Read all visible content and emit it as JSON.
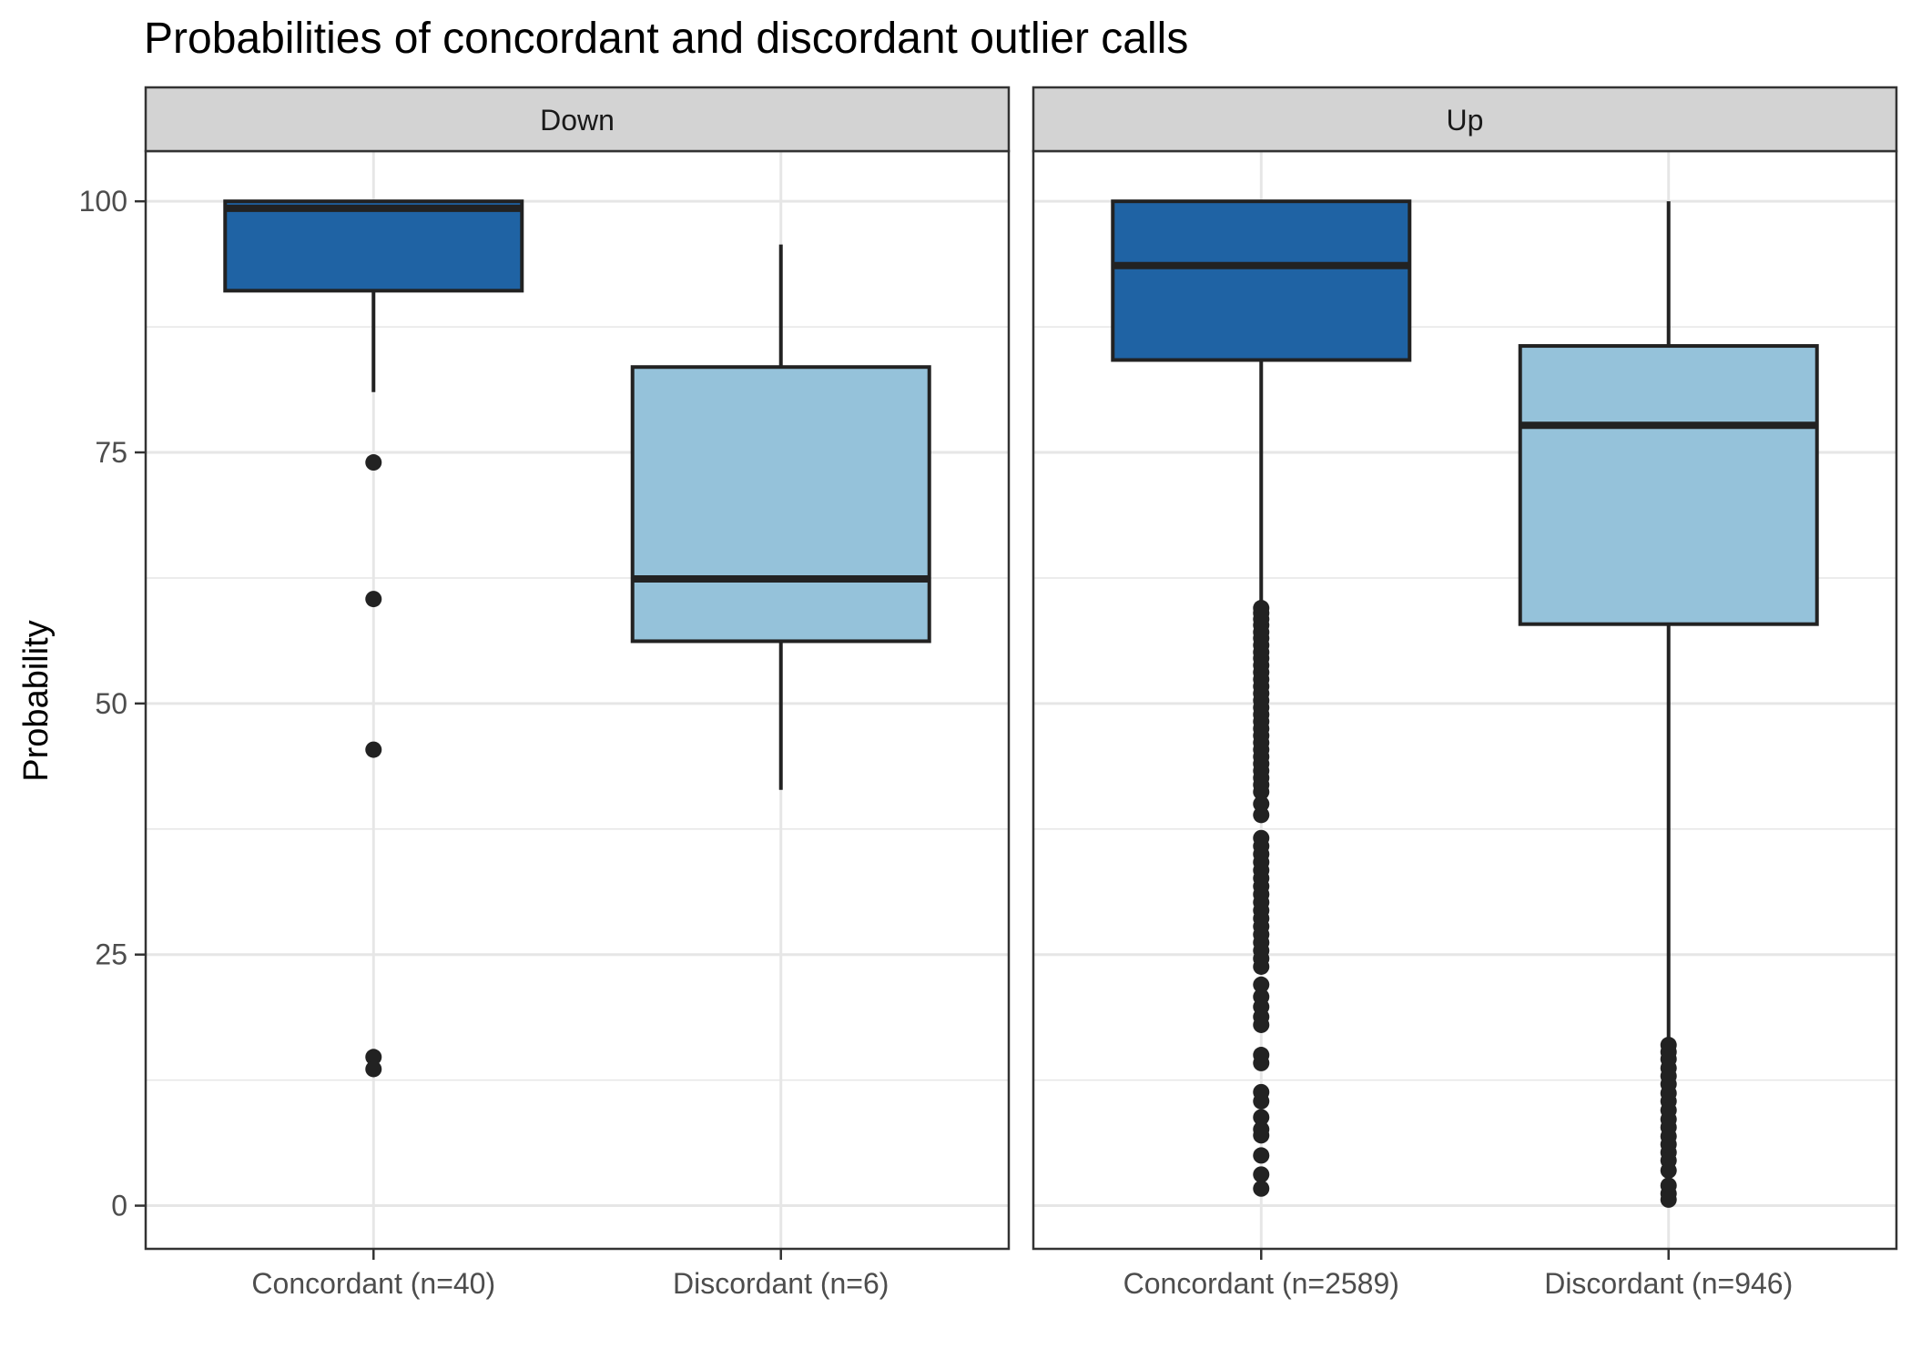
{
  "chart_data": {
    "type": "boxplot",
    "title": "Probabilities of concordant and discordant outlier calls",
    "ylabel": "Probability",
    "xlabel": "",
    "ylim": [
      -4.3,
      105
    ],
    "yticks": [
      0,
      25,
      50,
      75,
      100
    ],
    "grid": true,
    "legend": "none",
    "colors": {
      "concordant": "#1f63a4",
      "discordant": "#95c2da",
      "outline": "#222222",
      "strip_fill": "#d3d3d3",
      "grid": "#e6e6e6"
    },
    "panels": [
      {
        "strip_label": "Down",
        "categories": [
          "Concordant (n=40)",
          "Discordant (n=6)"
        ],
        "boxes": [
          {
            "group": "concordant",
            "whisker_low": 81.0,
            "q1": 91.1,
            "median": 99.3,
            "q3": 100.0,
            "whisker_high": 100.0,
            "outliers": [
              74.0,
              60.4,
              45.4,
              14.8,
              13.6
            ]
          },
          {
            "group": "discordant",
            "whisker_low": 41.4,
            "q1": 56.2,
            "median": 62.4,
            "q3": 83.5,
            "whisker_high": 95.7,
            "outliers": []
          }
        ]
      },
      {
        "strip_label": "Up",
        "categories": [
          "Concordant (n=2589)",
          "Discordant (n=946)"
        ],
        "boxes": [
          {
            "group": "concordant",
            "whisker_low": 59.8,
            "q1": 84.2,
            "median": 93.6,
            "q3": 100.0,
            "whisker_high": 100.0,
            "outliers": [
              59.5,
              59.0,
              58.4,
              57.8,
              57.1,
              56.5,
              55.8,
              55.1,
              54.5,
              53.8,
              53.1,
              52.4,
              51.7,
              51.0,
              50.3,
              49.6,
              48.9,
              48.2,
              47.5,
              46.8,
              46.1,
              45.4,
              44.7,
              44.0,
              43.3,
              42.6,
              41.9,
              41.2,
              40.0,
              38.9,
              36.6,
              35.8,
              35.0,
              34.2,
              33.4,
              32.6,
              31.8,
              31.0,
              30.2,
              29.4,
              28.6,
              27.8,
              27.0,
              26.2,
              25.4,
              24.6,
              23.8,
              22.0,
              20.8,
              19.8,
              18.8,
              18.0,
              15.0,
              14.2,
              11.3,
              10.4,
              8.8,
              7.6,
              7.0,
              5.0,
              3.1,
              1.7
            ]
          },
          {
            "group": "discordant",
            "whisker_low": 16.4,
            "q1": 57.9,
            "median": 77.7,
            "q3": 85.6,
            "whisker_high": 100.0,
            "outliers": [
              16.0,
              15.3,
              14.6,
              13.7,
              12.9,
              12.1,
              11.2,
              10.4,
              9.5,
              8.6,
              7.8,
              6.9,
              6.1,
              5.3,
              4.5,
              3.5,
              2.0,
              1.2,
              0.6
            ]
          }
        ]
      }
    ]
  }
}
